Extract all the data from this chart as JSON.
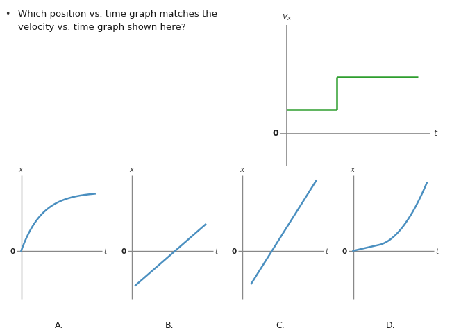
{
  "question_text": "Which position vs. time graph matches the\nvelocity vs. time graph shown here?",
  "bg_color": "#ffffff",
  "text_color": "#1a1a1a",
  "graph_color_vt": "#2e9e2e",
  "graph_color_xt": "#4a8fc0",
  "axis_color": "#888888",
  "label_color": "#444444",
  "vt_segments": [
    {
      "x": [
        0.0,
        0.38
      ],
      "y": [
        0.22,
        0.22
      ]
    },
    {
      "x": [
        0.38,
        0.38
      ],
      "y": [
        0.22,
        0.52
      ]
    },
    {
      "x": [
        0.38,
        1.0
      ],
      "y": [
        0.52,
        0.52
      ]
    }
  ],
  "xt_graphs": [
    {
      "label": "A.",
      "curve": "concave_down"
    },
    {
      "label": "B.",
      "curve": "linear_below"
    },
    {
      "label": "C.",
      "curve": "linear_steep_below"
    },
    {
      "label": "D.",
      "curve": "two_slopes_from_zero"
    }
  ]
}
